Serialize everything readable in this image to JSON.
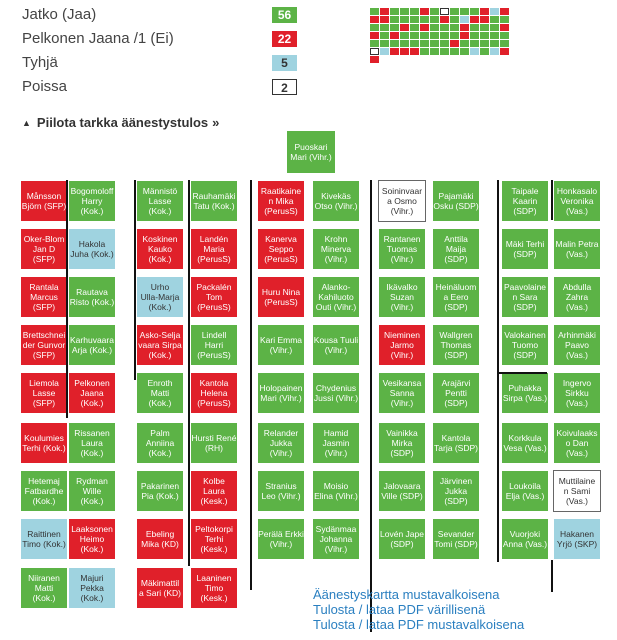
{
  "legend": [
    {
      "label": "Jatko (Jaa)",
      "count": "56",
      "color": "#5cb346",
      "text_color": "#fff"
    },
    {
      "label": "Pelkonen Jaana /1 (Ei)",
      "count": "22",
      "color": "#e0202a",
      "text_color": "#fff"
    },
    {
      "label": "Tyhjä",
      "count": "5",
      "color": "#9fd3e0",
      "text_color": "#333"
    },
    {
      "label": "Poissa",
      "count": "2",
      "color": "#ffffff",
      "text_color": "#333"
    }
  ],
  "toggle": {
    "label": "Piilota tarkka äänestystulos",
    "icon": "triangle-up-icon",
    "chevron": "»"
  },
  "speaker": {
    "name": "Puoskari\nMari (Vihr.)",
    "vote": "g"
  },
  "seats": [
    [
      "Månsson\nBjörn (SFP)",
      "r"
    ],
    [
      "Bogomoloff\nHarry\n(Kok.)",
      "g"
    ],
    [
      "Männistö\nLasse\n(Kok.)",
      "g"
    ],
    [
      "Rauhamäki\nTatu (Kok.)",
      "g"
    ],
    [
      "Raatikaine\nn Mika\n(PerusS)",
      "r"
    ],
    [
      "Kivekäs\nOtso (Vihr.)",
      "g"
    ],
    [
      "Soininvaar\na Osmo\n(Vihr.)",
      "w"
    ],
    [
      "Pajamäki\nOsku (SDP)",
      "g"
    ],
    [
      "Taipale\nKaarin\n(SDP)",
      "g"
    ],
    [
      "Honkasalo\nVeronika\n(Vas.)",
      "g"
    ],
    [
      "Oker-Blom\nJan D (SFP)",
      "r"
    ],
    [
      "Hakola\nJuha (Kok.)",
      "b"
    ],
    [
      "Koskinen\nKauko\n(Kok.)",
      "r"
    ],
    [
      "Landén\nMaria\n(PerusS)",
      "r"
    ],
    [
      "Kanerva\nSeppo\n(PerusS)",
      "r"
    ],
    [
      "Krohn\nMinerva\n(Vihr.)",
      "g"
    ],
    [
      "Rantanen\nTuomas\n(Vihr.)",
      "g"
    ],
    [
      "Anttila\nMaija\n(SDP)",
      "g"
    ],
    [
      "Mäki Terhi\n(SDP)",
      "g"
    ],
    [
      "Malin Petra\n(Vas.)",
      "g"
    ],
    [
      "Rantala\nMarcus\n(SFP)",
      "r"
    ],
    [
      "Rautava\nRisto (Kok.)",
      "g"
    ],
    [
      "Urho\nUlla-Marja\n(Kok.)",
      "b"
    ],
    [
      "Packalén\nTom\n(PerusS)",
      "r"
    ],
    [
      "Huru Nina\n(PerusS)",
      "r"
    ],
    [
      "Alanko-\nKahiluoto\nOuti (Vihr.)",
      "g"
    ],
    [
      "Ikävalko\nSuzan\n(Vihr.)",
      "g"
    ],
    [
      "Heinäluom\na Eero\n(SDP)",
      "g"
    ],
    [
      "Paavolaine\nn Sara\n(SDP)",
      "g"
    ],
    [
      "Abdulla\nZahra\n(Vas.)",
      "g"
    ],
    [
      "Brettschnei\nder Gunvor\n(SFP)",
      "r"
    ],
    [
      "Karhuvaara\nArja (Kok.)",
      "g"
    ],
    [
      "Asko-Selja\nvaara Sirpa\n(Kok.)",
      "r"
    ],
    [
      "Lindell\nHarri\n(PerusS)",
      "g"
    ],
    [
      "Kari Emma\n(Vihr.)",
      "g"
    ],
    [
      "Kousa Tuuli\n(Vihr.)",
      "g"
    ],
    [
      "Nieminen\nJarmo\n(Vihr.)",
      "r"
    ],
    [
      "Wallgren\nThomas\n(SDP)",
      "g"
    ],
    [
      "Valokainen\nTuomo\n(SDP)",
      "g"
    ],
    [
      "Arhinmäki\nPaavo\n(Vas.)",
      "g"
    ],
    [
      "Liemola\nLasse (SFP)",
      "r"
    ],
    [
      "Pelkonen\nJaana\n(Kok.)",
      "r"
    ],
    [
      "Enroth\nMatti\n(Kok.)",
      "g"
    ],
    [
      "Kantola\nHelena\n(PerusS)",
      "r"
    ],
    [
      "Holopainen\nMari (Vihr.)",
      "g"
    ],
    [
      "Chydenius\nJussi (Vihr.)",
      "g"
    ],
    [
      "Vesikansa\nSanna\n(Vihr.)",
      "g"
    ],
    [
      "Arajärvi\nPentti\n(SDP)",
      "g"
    ],
    [
      "Puhakka\nSirpa (Vas.)",
      "g"
    ],
    [
      "Ingervo\nSirkku\n(Vas.)",
      "g"
    ],
    [
      "Koulumies\nTerhi (Kok.)",
      "r"
    ],
    [
      "Rissanen\nLaura\n(Kok.)",
      "g"
    ],
    [
      "Palm\nAnniina\n(Kok.)",
      "g"
    ],
    [
      "Hursti René\n(RH)",
      "g"
    ],
    [
      "Relander\nJukka\n(Vihr.)",
      "g"
    ],
    [
      "Hamid\nJasmin\n(Vihr.)",
      "g"
    ],
    [
      "Vainikka\nMirka\n(SDP)",
      "g"
    ],
    [
      "Kantola\nTarja (SDP)",
      "g"
    ],
    [
      "Korkkula\nVesa (Vas.)",
      "g"
    ],
    [
      "Koivulaaks\no Dan\n(Vas.)",
      "g"
    ],
    [
      "Hetemaj\nFatbardhe\n(Kok.)",
      "g"
    ],
    [
      "Rydman\nWille\n(Kok.)",
      "g"
    ],
    [
      "Pakarinen\nPia (Kok.)",
      "g"
    ],
    [
      "Kolbe\nLaura\n(Kesk.)",
      "r"
    ],
    [
      "Stranius\nLeo (Vihr.)",
      "g"
    ],
    [
      "Moisio\nElina (Vihr.)",
      "g"
    ],
    [
      "Jalovaara\nVille (SDP)",
      "g"
    ],
    [
      "Järvinen\nJukka (SDP)",
      "g"
    ],
    [
      "Loukoila\nElja (Vas.)",
      "g"
    ],
    [
      "Muttilaine\nn Sami\n(Vas.)",
      "w"
    ],
    [
      "Raittinen\nTimo (Kok.)",
      "b"
    ],
    [
      "Laaksonen\nHeimo\n(Kok.)",
      "r"
    ],
    [
      "Ebeling\nMika (KD)",
      "r"
    ],
    [
      "Peltokorpi\nTerhi\n(Kesk.)",
      "r"
    ],
    [
      "Perälä Erkki\n(Vihr.)",
      "g"
    ],
    [
      "Sydänmaa\nJohanna\n(Vihr.)",
      "g"
    ],
    [
      "Lovén Jape\n(SDP)",
      "g"
    ],
    [
      "Sevander\nTomi (SDP)",
      "g"
    ],
    [
      "Vuorjoki\nAnna (Vas.)",
      "g"
    ],
    [
      "Hakanen\nYrjö (SKP)",
      "b"
    ],
    [
      "Niiranen\nMatti\n(Kok.)",
      "g"
    ],
    [
      "Majuri\nPekka\n(Kok.)",
      "b"
    ],
    [
      "Mäkimattil\na Sari (KD)",
      "r"
    ],
    [
      "Laaninen\nTimo\n(Kesk.)",
      "r"
    ],
    null,
    null,
    null,
    null,
    null,
    null
  ],
  "links": [
    "Äänestyskartta mustavalkoisena",
    "Tulosta / lataa PDF värillisenä",
    "Tulosta / lataa PDF mustavalkoisena"
  ]
}
